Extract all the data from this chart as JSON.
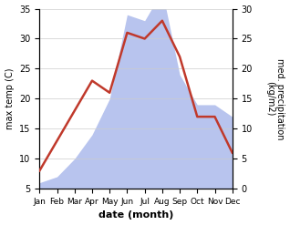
{
  "months": [
    "Jan",
    "Feb",
    "Mar",
    "Apr",
    "May",
    "Jun",
    "Jul",
    "Aug",
    "Sep",
    "Oct",
    "Nov",
    "Dec"
  ],
  "temperature": [
    8,
    13,
    18,
    23,
    21,
    31,
    30,
    33,
    27,
    17,
    17,
    11
  ],
  "precipitation": [
    1,
    2,
    5,
    9,
    15,
    29,
    28,
    33,
    19,
    14,
    14,
    12
  ],
  "temp_color": "#c0392b",
  "precip_color": "#b8c4ee",
  "xlabel": "date (month)",
  "ylabel_left": "max temp (C)",
  "ylabel_right": "med. precipitation\n(kg/m2)",
  "ylim_left": [
    5,
    35
  ],
  "ylim_right": [
    0,
    30
  ],
  "yticks_left": [
    5,
    10,
    15,
    20,
    25,
    30,
    35
  ],
  "yticks_right": [
    0,
    5,
    10,
    15,
    20,
    25,
    30
  ],
  "bg_color": "#ffffff",
  "grid_color": "#cccccc",
  "temp_linewidth": 1.8
}
